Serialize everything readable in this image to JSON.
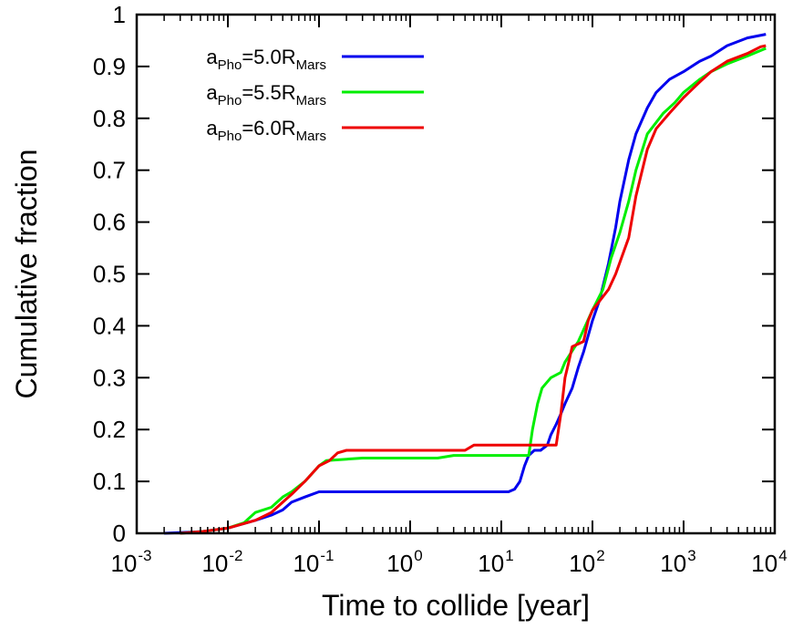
{
  "chart_data": {
    "type": "line",
    "title": "",
    "xlabel": "Time to collide [year]",
    "ylabel": "Cumulative fraction",
    "xscale": "log",
    "xlim": [
      0.001,
      10000
    ],
    "ylim": [
      0,
      1
    ],
    "grid": false,
    "legend_position": "top-left",
    "x_ticks": [
      {
        "base": "10",
        "exp": "-3"
      },
      {
        "base": "10",
        "exp": "-2"
      },
      {
        "base": "10",
        "exp": "-1"
      },
      {
        "base": "10",
        "exp": "0"
      },
      {
        "base": "10",
        "exp": "1"
      },
      {
        "base": "10",
        "exp": "2"
      },
      {
        "base": "10",
        "exp": "3"
      },
      {
        "base": "10",
        "exp": "4"
      }
    ],
    "y_ticks": [
      "0",
      "0.1",
      "0.2",
      "0.3",
      "0.4",
      "0.5",
      "0.6",
      "0.7",
      "0.8",
      "0.9",
      "1"
    ],
    "series": [
      {
        "label_main": "a",
        "label_sub1": "Pho",
        "label_mid": "=5.0R",
        "label_sub2": "Mars",
        "color": "#0000ee",
        "points": [
          [
            0.002,
            0
          ],
          [
            0.005,
            0.003
          ],
          [
            0.01,
            0.01
          ],
          [
            0.02,
            0.025
          ],
          [
            0.03,
            0.035
          ],
          [
            0.04,
            0.045
          ],
          [
            0.05,
            0.06
          ],
          [
            0.07,
            0.07
          ],
          [
            0.1,
            0.08
          ],
          [
            0.3,
            0.08
          ],
          [
            1,
            0.08
          ],
          [
            3,
            0.08
          ],
          [
            8,
            0.08
          ],
          [
            12,
            0.08
          ],
          [
            14,
            0.085
          ],
          [
            16,
            0.1
          ],
          [
            18,
            0.13
          ],
          [
            20,
            0.15
          ],
          [
            23,
            0.16
          ],
          [
            27,
            0.16
          ],
          [
            32,
            0.17
          ],
          [
            35,
            0.19
          ],
          [
            40,
            0.21
          ],
          [
            45,
            0.23
          ],
          [
            50,
            0.25
          ],
          [
            60,
            0.28
          ],
          [
            70,
            0.32
          ],
          [
            80,
            0.35
          ],
          [
            100,
            0.41
          ],
          [
            120,
            0.45
          ],
          [
            150,
            0.52
          ],
          [
            180,
            0.59
          ],
          [
            200,
            0.64
          ],
          [
            250,
            0.72
          ],
          [
            300,
            0.77
          ],
          [
            400,
            0.82
          ],
          [
            500,
            0.85
          ],
          [
            700,
            0.875
          ],
          [
            1000,
            0.89
          ],
          [
            1500,
            0.91
          ],
          [
            2000,
            0.92
          ],
          [
            3000,
            0.94
          ],
          [
            5000,
            0.955
          ],
          [
            8000,
            0.962
          ]
        ]
      },
      {
        "label_main": "a",
        "label_sub1": "Pho",
        "label_mid": "=5.5R",
        "label_sub2": "Mars",
        "color": "#00ee00",
        "points": [
          [
            0.003,
            0
          ],
          [
            0.005,
            0.003
          ],
          [
            0.01,
            0.01
          ],
          [
            0.015,
            0.02
          ],
          [
            0.02,
            0.04
          ],
          [
            0.03,
            0.05
          ],
          [
            0.04,
            0.07
          ],
          [
            0.05,
            0.08
          ],
          [
            0.07,
            0.1
          ],
          [
            0.1,
            0.13
          ],
          [
            0.12,
            0.14
          ],
          [
            0.3,
            0.145
          ],
          [
            1,
            0.145
          ],
          [
            2,
            0.145
          ],
          [
            3,
            0.15
          ],
          [
            10,
            0.15
          ],
          [
            20,
            0.15
          ],
          [
            22,
            0.2
          ],
          [
            25,
            0.25
          ],
          [
            28,
            0.28
          ],
          [
            35,
            0.3
          ],
          [
            45,
            0.31
          ],
          [
            50,
            0.33
          ],
          [
            70,
            0.37
          ],
          [
            100,
            0.43
          ],
          [
            130,
            0.47
          ],
          [
            160,
            0.53
          ],
          [
            200,
            0.58
          ],
          [
            250,
            0.64
          ],
          [
            300,
            0.7
          ],
          [
            400,
            0.77
          ],
          [
            600,
            0.81
          ],
          [
            800,
            0.83
          ],
          [
            1000,
            0.85
          ],
          [
            1500,
            0.875
          ],
          [
            2000,
            0.89
          ],
          [
            3000,
            0.905
          ],
          [
            5000,
            0.92
          ],
          [
            8000,
            0.935
          ]
        ]
      },
      {
        "label_main": "a",
        "label_sub1": "Pho",
        "label_mid": "=6.0R",
        "label_sub2": "Mars",
        "color": "#ee0000",
        "points": [
          [
            0.003,
            0
          ],
          [
            0.005,
            0.003
          ],
          [
            0.01,
            0.01
          ],
          [
            0.02,
            0.025
          ],
          [
            0.03,
            0.04
          ],
          [
            0.04,
            0.06
          ],
          [
            0.05,
            0.075
          ],
          [
            0.07,
            0.1
          ],
          [
            0.1,
            0.13
          ],
          [
            0.13,
            0.14
          ],
          [
            0.16,
            0.155
          ],
          [
            0.2,
            0.16
          ],
          [
            0.5,
            0.16
          ],
          [
            1,
            0.16
          ],
          [
            2,
            0.16
          ],
          [
            4,
            0.16
          ],
          [
            5,
            0.17
          ],
          [
            10,
            0.17
          ],
          [
            20,
            0.17
          ],
          [
            30,
            0.17
          ],
          [
            40,
            0.17
          ],
          [
            45,
            0.23
          ],
          [
            50,
            0.3
          ],
          [
            55,
            0.33
          ],
          [
            60,
            0.36
          ],
          [
            70,
            0.365
          ],
          [
            80,
            0.37
          ],
          [
            90,
            0.41
          ],
          [
            100,
            0.43
          ],
          [
            150,
            0.47
          ],
          [
            180,
            0.5
          ],
          [
            250,
            0.57
          ],
          [
            300,
            0.65
          ],
          [
            400,
            0.74
          ],
          [
            500,
            0.78
          ],
          [
            700,
            0.81
          ],
          [
            1000,
            0.84
          ],
          [
            1500,
            0.87
          ],
          [
            2000,
            0.89
          ],
          [
            3000,
            0.91
          ],
          [
            5000,
            0.925
          ],
          [
            7000,
            0.938
          ],
          [
            8000,
            0.94
          ]
        ]
      }
    ]
  }
}
